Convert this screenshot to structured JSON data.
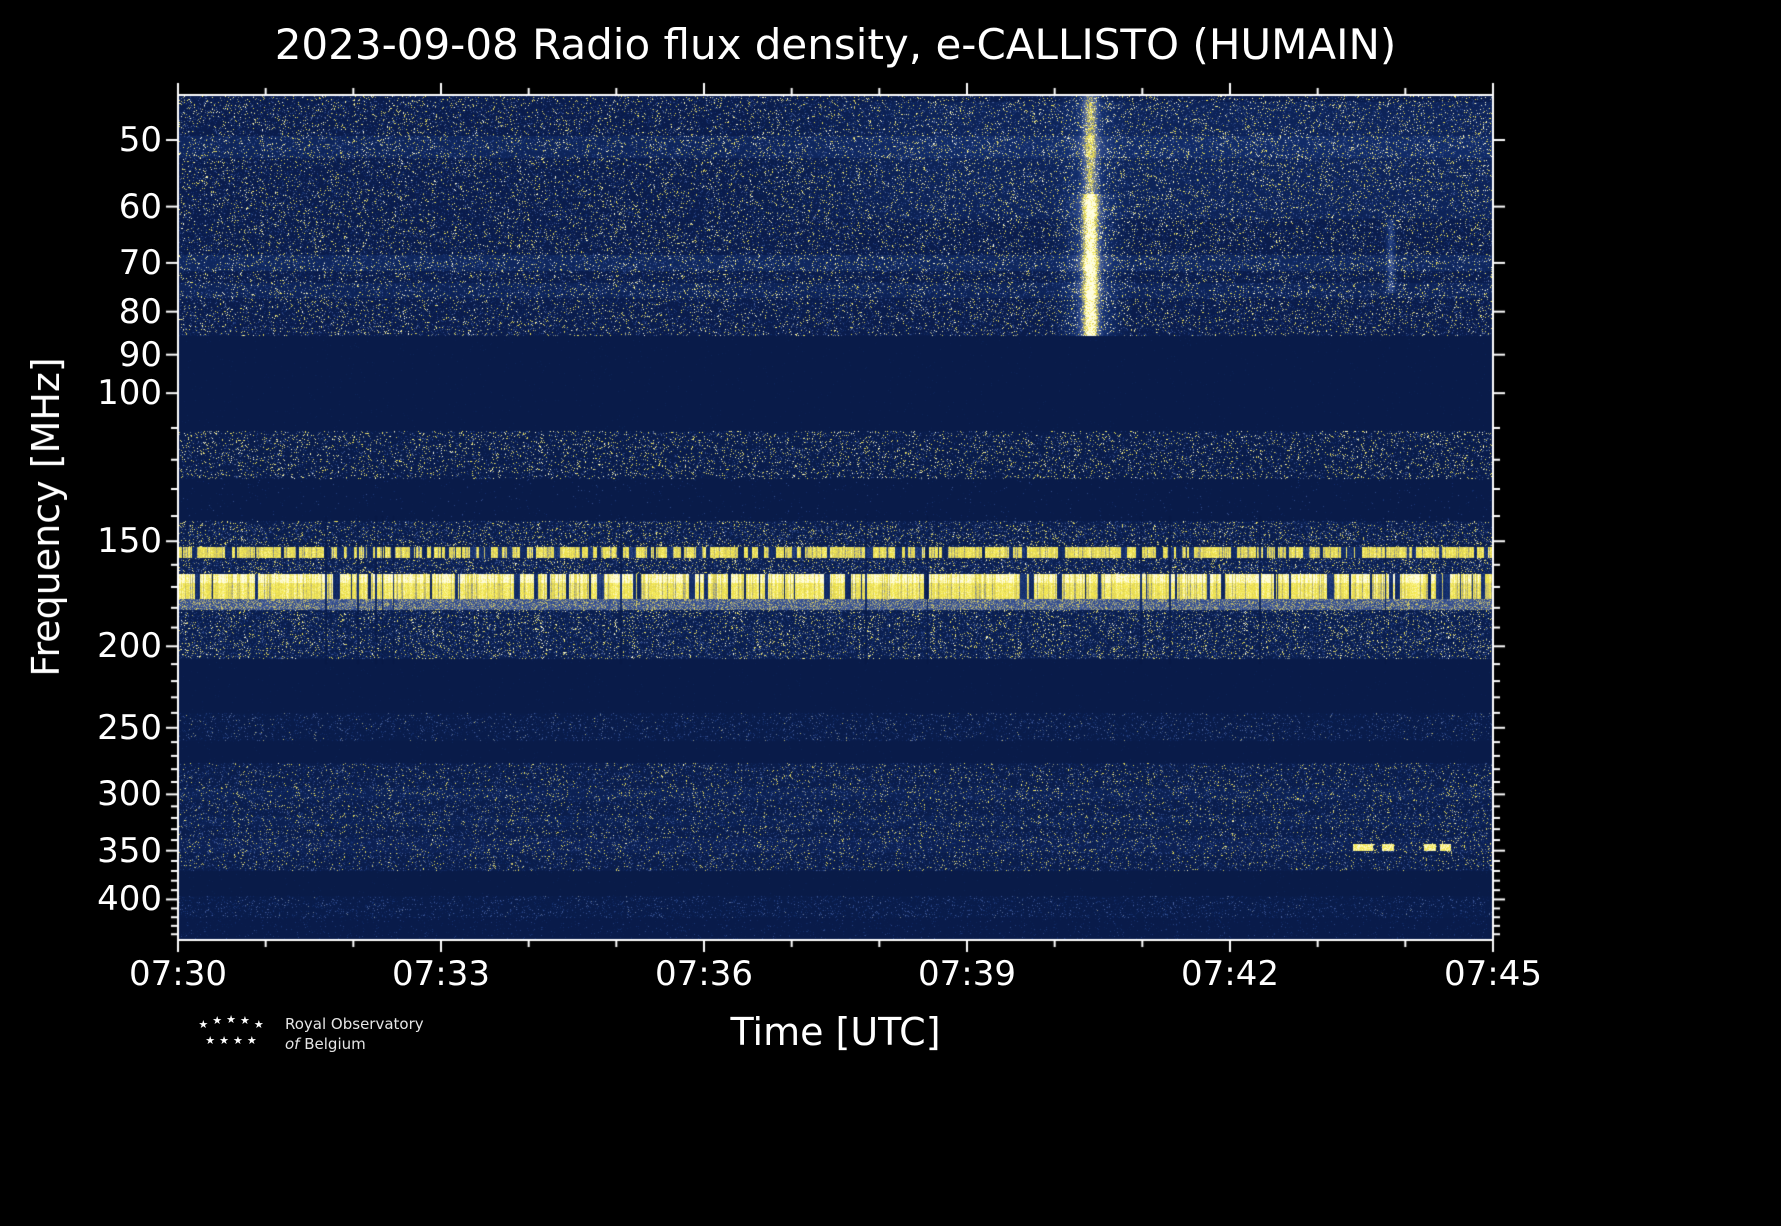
{
  "title": "2023-09-08 Radio flux density, e-CALLISTO (HUMAIN)",
  "logo": {
    "line1": "Royal Observatory",
    "line2_italic": "of",
    "line2_rest": "Belgium"
  },
  "chart_data": {
    "type": "heatmap",
    "subtype": "radio-spectrogram",
    "date": "2023-09-08",
    "instrument": "e-CALLISTO (HUMAIN)",
    "title": "2023-09-08 Radio flux density, e-CALLISTO (HUMAIN)",
    "xlabel": "Time [UTC]",
    "ylabel": "Frequency [MHz]",
    "time_start": "07:30",
    "time_end": "07:45",
    "x_ticks": [
      "07:30",
      "07:33",
      "07:36",
      "07:39",
      "07:42",
      "07:45"
    ],
    "x_tick_minutes": [
      0,
      3,
      6,
      9,
      12,
      15
    ],
    "x_minor_tick_minutes": [
      1,
      2,
      4,
      5,
      7,
      8,
      10,
      11,
      13,
      14
    ],
    "x_range_minutes": [
      0,
      15
    ],
    "y_scale": "log",
    "y_ticks": [
      50,
      60,
      70,
      80,
      90,
      100,
      150,
      200,
      250,
      300,
      350,
      400
    ],
    "y_minor_ticks": [
      110,
      120,
      130,
      140,
      160,
      170,
      180,
      190,
      210,
      220,
      230,
      240,
      260,
      270,
      280,
      290,
      310,
      320,
      330,
      340,
      360,
      370,
      380,
      390,
      410,
      420,
      430,
      440
    ],
    "freq_range_mhz": [
      44.2,
      447
    ],
    "background": "#000000",
    "axis_color": "#ffffff",
    "colormap": {
      "stops": [
        [
          0.0,
          "#081945"
        ],
        [
          0.25,
          "#14306F"
        ],
        [
          0.5,
          "#4A62A0"
        ],
        [
          0.7,
          "#C9C06A"
        ],
        [
          0.85,
          "#F5E94E"
        ],
        [
          1.0,
          "#FFFDE0"
        ]
      ]
    },
    "bands": [
      {
        "name": "noise 45-85 MHz",
        "f": [
          44.2,
          85.5
        ],
        "type": "noise",
        "base": 0.045,
        "density": 0.5,
        "gamma": 5.0,
        "max": 1.0,
        "vcorr": 0.25,
        "hlines": [
          {
            "f": [
              49.5,
              52.5
            ],
            "boost": 0.09
          },
          {
            "f": [
              68.5,
              71.5
            ],
            "boost": 0.11
          },
          {
            "f": [
              74.0,
              77.0
            ],
            "boost": 0.07
          }
        ]
      },
      {
        "name": "blank FM band 86-110 MHz",
        "f": [
          85.5,
          111
        ],
        "type": "blank",
        "base": 0.03
      },
      {
        "name": "airband RFI 112-126 MHz",
        "f": [
          111,
          126.5
        ],
        "type": "noise",
        "base": 0.04,
        "density": 0.22,
        "gamma": 1.7,
        "max": 1.0,
        "vcorr": 0.15
      },
      {
        "name": "quiet 127-141 MHz",
        "f": [
          126.5,
          142
        ],
        "type": "noise",
        "base": 0.03,
        "density": 0.05,
        "gamma": 5.0,
        "max": 0.4,
        "vcorr": 0.1
      },
      {
        "name": "noise 143-152 MHz",
        "f": [
          142,
          152.5
        ],
        "type": "noise",
        "base": 0.05,
        "density": 0.5,
        "gamma": 3.2,
        "max": 0.9,
        "vcorr": 0.3
      },
      {
        "name": "bright RFI band ~155 MHz",
        "f": [
          152.5,
          157
        ],
        "type": "bright",
        "level": 0.82,
        "gap_density": 0.08,
        "gap_depth": 0.28,
        "jitter": 0.16
      },
      {
        "name": "noise 158-163 MHz",
        "f": [
          157,
          164
        ],
        "type": "noise",
        "base": 0.07,
        "density": 0.55,
        "gamma": 3.0,
        "max": 0.85,
        "vcorr": 0.35
      },
      {
        "name": "bright RFI band 165-175 MHz",
        "f": [
          164,
          175.5
        ],
        "type": "bright",
        "level": 0.92,
        "gap_density": 0.05,
        "gap_depth": 0.25,
        "jitter": 0.13
      },
      {
        "name": "pale band 176-181 MHz",
        "f": [
          175.5,
          181
        ],
        "type": "noise",
        "base": 0.38,
        "density": 0.95,
        "gamma": 1.6,
        "max": 0.35,
        "vcorr": 0.2
      },
      {
        "name": "noise 182-207 MHz",
        "f": [
          181,
          207
        ],
        "type": "noise",
        "base": 0.06,
        "density": 0.55,
        "gamma": 3.6,
        "max": 0.9,
        "vcorr": 0.5
      },
      {
        "name": "blank 208-240 MHz",
        "f": [
          207,
          240
        ],
        "type": "blank",
        "base": 0.028
      },
      {
        "name": "sparse noise ~250 MHz",
        "f": [
          240,
          259
        ],
        "type": "noise",
        "base": 0.04,
        "density": 0.3,
        "gamma": 4.0,
        "max": 0.6,
        "vcorr": 0.2
      },
      {
        "name": "blank 260-275 MHz",
        "f": [
          259,
          275
        ],
        "type": "blank",
        "base": 0.03
      },
      {
        "name": "noise 277-368 MHz",
        "f": [
          275,
          370
        ],
        "type": "noise",
        "base": 0.05,
        "density": 0.48,
        "gamma": 4.5,
        "max": 0.8,
        "vcorr": 0.3,
        "hlines": [
          {
            "f": [
              295,
              305
            ],
            "boost": 0.045
          },
          {
            "f": [
              318,
              327
            ],
            "boost": 0.03
          },
          {
            "f": [
              338,
              352
            ],
            "boost": 0.04
          }
        ]
      },
      {
        "name": "blank 370-395 MHz",
        "f": [
          370,
          396
        ],
        "type": "blank",
        "base": 0.026
      },
      {
        "name": "faint noise ~400-420 MHz",
        "f": [
          396,
          421
        ],
        "type": "noise",
        "base": 0.04,
        "density": 0.35,
        "gamma": 4.2,
        "max": 0.5,
        "vcorr": 0.2
      },
      {
        "name": "bottom faint noise",
        "f": [
          421,
          447
        ],
        "type": "noise",
        "base": 0.032,
        "density": 0.15,
        "gamma": 5.0,
        "max": 0.35,
        "vcorr": 0.1
      }
    ],
    "features": {
      "burst": {
        "description": "bright vertical solar radio burst",
        "time_utc": "~07:40:25",
        "x_frac": 0.6935,
        "sigma_core": 5,
        "sigma_halo": 16,
        "segments": [
          {
            "f": [
              44.2,
              58
            ],
            "amp": 0.5
          },
          {
            "f": [
              58,
              85.5
            ],
            "amp": 0.95
          }
        ]
      },
      "faint_burst": {
        "x_frac": 0.922,
        "f": [
          62,
          76
        ],
        "amp": 0.28,
        "sigma": 3
      },
      "haze": {
        "description": "diffuse brightening upper right",
        "x_frac_start": 0.42,
        "f": [
          45,
          62
        ],
        "boost": 0.07
      },
      "dashes": {
        "description": "isolated bright RFI dashes ~346 MHz near 07:43-07:45",
        "f": [
          344,
          350
        ],
        "amp": 0.9,
        "x_fracs": [
          [
            0.893,
            0.908
          ],
          [
            0.915,
            0.924
          ],
          [
            0.947,
            0.956
          ],
          [
            0.959,
            0.968
          ]
        ]
      },
      "gap_columns": {
        "description": "thin dark time gaps crossing 140-210 MHz",
        "f": [
          140,
          210
        ],
        "probability": 0.012,
        "mult": 0.32
      }
    }
  }
}
